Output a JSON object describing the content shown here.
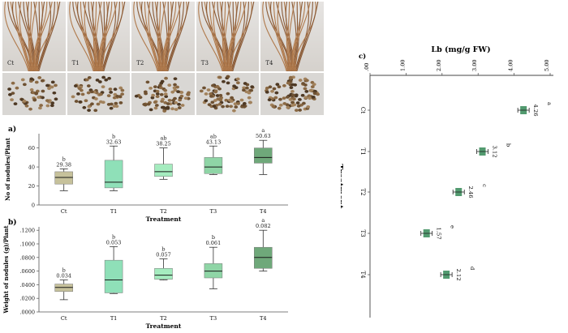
{
  "photos": {
    "roots": [
      {
        "label": "Ct"
      },
      {
        "label": "T1"
      },
      {
        "label": "T2"
      },
      {
        "label": "T3"
      },
      {
        "label": "T4"
      }
    ],
    "nodule_tiles": 5
  },
  "chart_data": [
    {
      "panel_label": "a)",
      "type": "box",
      "xlabel": "Treatment",
      "ylabel": "No of nodules/Plant",
      "categories": [
        "Ct",
        "T1",
        "T2",
        "T3",
        "T4"
      ],
      "y_ticks": [
        "0",
        "20",
        "40",
        "60"
      ],
      "ylim": [
        0,
        75
      ],
      "fill_colors": [
        "#c6c19b",
        "#8fe0b8",
        "#a5ecbf",
        "#8fd5a6",
        "#6fa87a"
      ],
      "boxes": [
        {
          "min": 15,
          "q1": 22,
          "median": 29,
          "q3": 35,
          "max": 38
        },
        {
          "min": 15,
          "q1": 18,
          "median": 24,
          "q3": 47,
          "max": 62
        },
        {
          "min": 27,
          "q1": 30,
          "median": 35,
          "q3": 43,
          "max": 60
        },
        {
          "min": 32,
          "q1": 33,
          "median": 40,
          "q3": 50,
          "max": 62
        },
        {
          "min": 32,
          "q1": 44,
          "median": 50,
          "q3": 60,
          "max": 68
        }
      ],
      "means": [
        "29.38",
        "32.63",
        "38.25",
        "43.13",
        "50.63"
      ],
      "letters": [
        "b",
        "b",
        "ab",
        "ab",
        "a"
      ]
    },
    {
      "panel_label": "b)",
      "type": "box",
      "xlabel": "Treatment",
      "ylabel": "Weight of nodules (g)/Plant",
      "categories": [
        "Ct",
        "T1",
        "T2",
        "T3",
        "T4"
      ],
      "y_ticks": [
        ".0000",
        ".0200",
        ".0400",
        ".0600",
        ".0800",
        ".1000",
        ".1200"
      ],
      "ylim": [
        0,
        0.125
      ],
      "fill_colors": [
        "#c6c19b",
        "#8fe0b8",
        "#a5ecbf",
        "#8fd5a6",
        "#6fa87a"
      ],
      "boxes": [
        {
          "min": 0.018,
          "q1": 0.03,
          "median": 0.036,
          "q3": 0.041,
          "max": 0.047
        },
        {
          "min": 0.027,
          "q1": 0.028,
          "median": 0.047,
          "q3": 0.076,
          "max": 0.096
        },
        {
          "min": 0.047,
          "q1": 0.048,
          "median": 0.054,
          "q3": 0.064,
          "max": 0.078
        },
        {
          "min": 0.034,
          "q1": 0.05,
          "median": 0.06,
          "q3": 0.071,
          "max": 0.095
        },
        {
          "min": 0.06,
          "q1": 0.064,
          "median": 0.08,
          "q3": 0.095,
          "max": 0.12
        }
      ],
      "means": [
        "0.034",
        "0.053",
        "0.057",
        "0.061",
        "0.082"
      ],
      "letters": [
        "b",
        "b",
        "b",
        "b",
        "a"
      ]
    },
    {
      "panel_label": "c)",
      "type": "bar",
      "orientation": "rotated",
      "xlabel": "Treatment",
      "ylabel": "Lb (mg/g FW)",
      "categories": [
        "Ct",
        "T1",
        "T2",
        "T3",
        "T4"
      ],
      "values": [
        4.26,
        3.12,
        2.46,
        1.57,
        2.12
      ],
      "value_labels": [
        "4.26",
        "3.12",
        "2.46",
        "1.57",
        "2.12"
      ],
      "letters": [
        "a",
        "b",
        "c",
        "e",
        "d"
      ],
      "y_ticks": [
        ".00",
        "1.00",
        "2.00",
        "3.00",
        "4.00",
        "5.00"
      ],
      "ylim": [
        0,
        5
      ],
      "color": "#3f8f5f"
    }
  ]
}
